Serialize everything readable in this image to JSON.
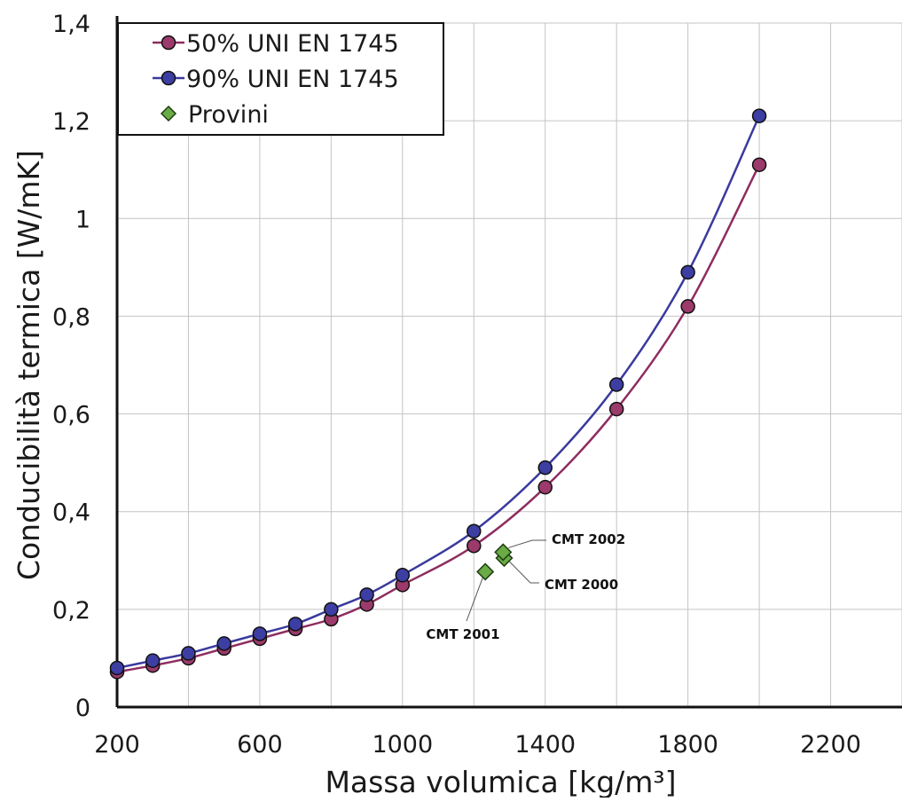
{
  "chart_data": {
    "type": "scatter",
    "title": "",
    "xlabel": "Massa volumica [kg/m³]",
    "ylabel": "Conducibilità termica [W/mK]",
    "xlim": [
      200,
      2400
    ],
    "ylim": [
      0,
      1.4
    ],
    "x_ticks": [
      200,
      600,
      1000,
      1400,
      1800,
      2200
    ],
    "y_ticks": [
      0,
      0.2,
      0.4,
      0.6,
      0.8,
      1,
      1.2,
      1.4
    ],
    "x_tick_labels": [
      "200",
      "600",
      "1000",
      "1400",
      "1800",
      "2200"
    ],
    "y_tick_labels": [
      "0",
      "0,2",
      "0,4",
      "0,6",
      "0,8",
      "1",
      "1,2",
      "1,4"
    ],
    "grid": true,
    "legend_position": "top-left",
    "series": [
      {
        "name": "50% UNI EN 1745",
        "kind": "line-marker",
        "color": "#8e2d5f",
        "marker_fill": "#9b3a6b",
        "x": [
          200,
          300,
          400,
          500,
          600,
          700,
          800,
          900,
          1000,
          1200,
          1400,
          1600,
          1800,
          2000
        ],
        "y": [
          0.072,
          0.085,
          0.1,
          0.12,
          0.14,
          0.16,
          0.18,
          0.21,
          0.25,
          0.33,
          0.45,
          0.61,
          0.82,
          1.11
        ]
      },
      {
        "name": "90% UNI EN 1745",
        "kind": "line-marker",
        "color": "#3a3a9e",
        "marker_fill": "#3d3ea3",
        "x": [
          200,
          300,
          400,
          500,
          600,
          700,
          800,
          900,
          1000,
          1200,
          1400,
          1600,
          1800,
          2000
        ],
        "y": [
          0.08,
          0.095,
          0.11,
          0.13,
          0.15,
          0.17,
          0.2,
          0.23,
          0.27,
          0.36,
          0.49,
          0.66,
          0.89,
          1.21
        ]
      },
      {
        "name": "Provini",
        "kind": "marker",
        "color": "#1f3d12",
        "marker_fill": "#6aab45",
        "x": [
          1285,
          1232,
          1282
        ],
        "y": [
          0.305,
          0.277,
          0.317
        ],
        "labels": [
          "CMT 2000",
          "CMT 2001",
          "CMT 2002"
        ]
      }
    ]
  }
}
